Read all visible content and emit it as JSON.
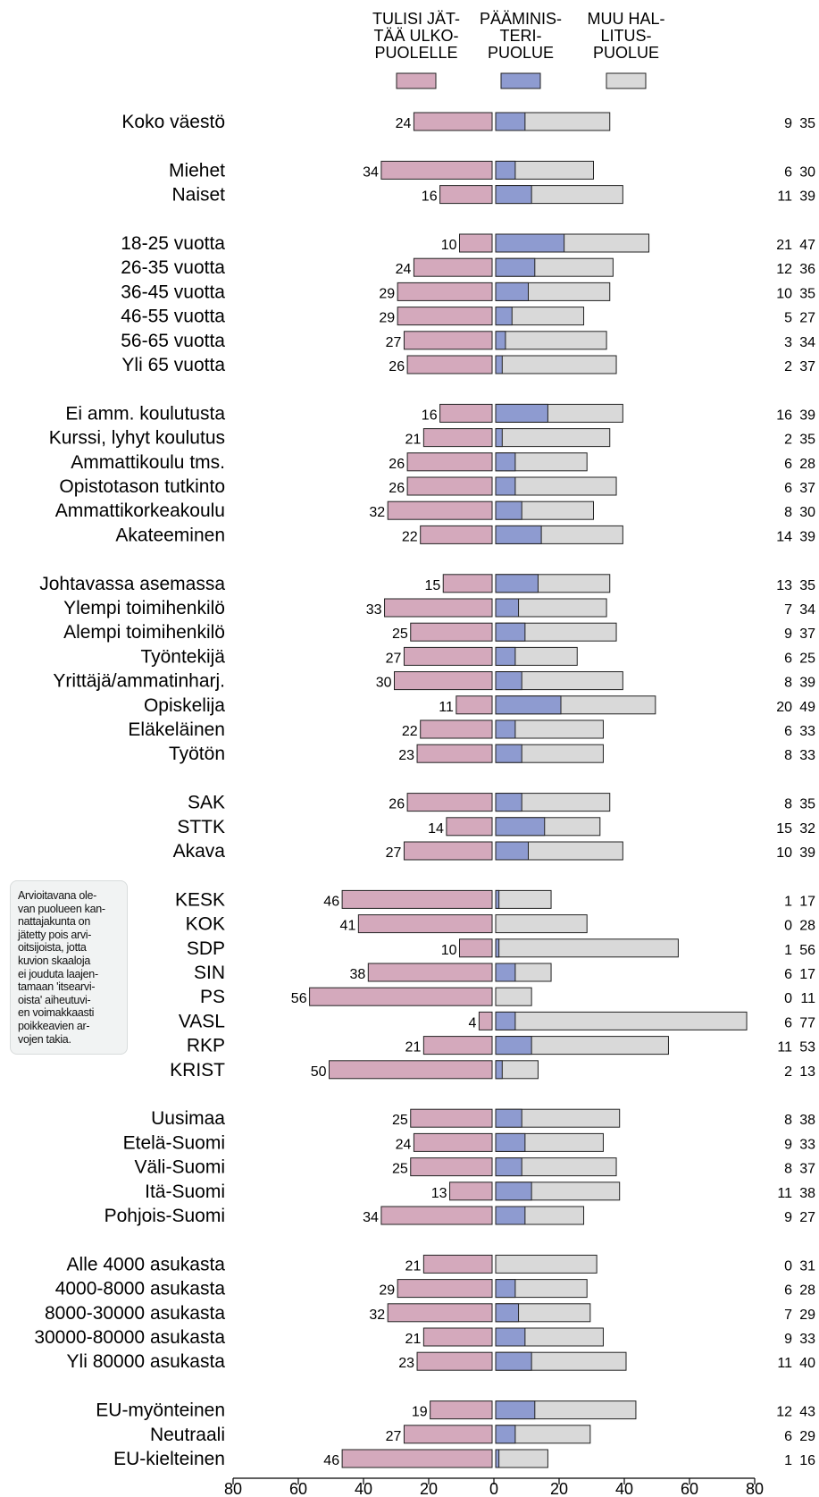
{
  "legend": [
    {
      "label": "TULISI JÄT-\nTÄÄ ULKO-\nPUOLELLE",
      "color": "#d4a9bc",
      "name": "legend-jattaa-ulkopuolelle"
    },
    {
      "label": "PÄÄMINIS-\nTERI-\nPUOLUE",
      "color": "#8e9bd0",
      "name": "legend-paaministeripuolue"
    },
    {
      "label": "MUU HAL-\nLITUS-\nPUOLUE",
      "color": "#d9d9d9",
      "name": "legend-muu-hallituspuolue"
    }
  ],
  "note": "Arvioitavana ole-\nvan puolueen kan-\nnattajakunta on\njätetty pois arvi-\noitsijoista, jotta\nkuvion skaaloja\nei jouduta laajen-\ntamaan 'itsearvi-\noista' aiheutuvi-\nen voimakkaasti\npoikkeavien ar-\nvojen takia.",
  "chart_data": {
    "type": "bar",
    "orientation": "horizontal-diverging",
    "xlim": [
      -80,
      80
    ],
    "xticks": [
      80,
      60,
      40,
      20,
      0,
      20,
      40,
      60,
      80
    ],
    "grid": false,
    "legend_position": "top",
    "groups": [
      [
        {
          "label": "Koko väestö",
          "left": 24,
          "pm": 9,
          "total": 35
        }
      ],
      [
        {
          "label": "Miehet",
          "left": 34,
          "pm": 6,
          "total": 30
        },
        {
          "label": "Naiset",
          "left": 16,
          "pm": 11,
          "total": 39
        }
      ],
      [
        {
          "label": "18-25 vuotta",
          "left": 10,
          "pm": 21,
          "total": 47
        },
        {
          "label": "26-35 vuotta",
          "left": 24,
          "pm": 12,
          "total": 36
        },
        {
          "label": "36-45 vuotta",
          "left": 29,
          "pm": 10,
          "total": 35
        },
        {
          "label": "46-55 vuotta",
          "left": 29,
          "pm": 5,
          "total": 27
        },
        {
          "label": "56-65 vuotta",
          "left": 27,
          "pm": 3,
          "total": 34
        },
        {
          "label": "Yli 65 vuotta",
          "left": 26,
          "pm": 2,
          "total": 37
        }
      ],
      [
        {
          "label": "Ei amm. koulutusta",
          "left": 16,
          "pm": 16,
          "total": 39
        },
        {
          "label": "Kurssi, lyhyt koulutus",
          "left": 21,
          "pm": 2,
          "total": 35
        },
        {
          "label": "Ammattikoulu tms.",
          "left": 26,
          "pm": 6,
          "total": 28
        },
        {
          "label": "Opistotason tutkinto",
          "left": 26,
          "pm": 6,
          "total": 37
        },
        {
          "label": "Ammattikorkeakoulu",
          "left": 32,
          "pm": 8,
          "total": 30
        },
        {
          "label": "Akateeminen",
          "left": 22,
          "pm": 14,
          "total": 39
        }
      ],
      [
        {
          "label": "Johtavassa asemassa",
          "left": 15,
          "pm": 13,
          "total": 35
        },
        {
          "label": "Ylempi toimihenkilö",
          "left": 33,
          "pm": 7,
          "total": 34
        },
        {
          "label": "Alempi toimihenkilö",
          "left": 25,
          "pm": 9,
          "total": 37
        },
        {
          "label": "Työntekijä",
          "left": 27,
          "pm": 6,
          "total": 25
        },
        {
          "label": "Yrittäjä/ammatinharj.",
          "left": 30,
          "pm": 8,
          "total": 39
        },
        {
          "label": "Opiskelija",
          "left": 11,
          "pm": 20,
          "total": 49
        },
        {
          "label": "Eläkeläinen",
          "left": 22,
          "pm": 6,
          "total": 33
        },
        {
          "label": "Työtön",
          "left": 23,
          "pm": 8,
          "total": 33
        }
      ],
      [
        {
          "label": "SAK",
          "left": 26,
          "pm": 8,
          "total": 35
        },
        {
          "label": "STTK",
          "left": 14,
          "pm": 15,
          "total": 32
        },
        {
          "label": "Akava",
          "left": 27,
          "pm": 10,
          "total": 39
        }
      ],
      [
        {
          "label": "KESK",
          "left": 46,
          "pm": 1,
          "total": 17
        },
        {
          "label": "KOK",
          "left": 41,
          "pm": 0,
          "total": 28
        },
        {
          "label": "SDP",
          "left": 10,
          "pm": 1,
          "total": 56
        },
        {
          "label": "SIN",
          "left": 38,
          "pm": 6,
          "total": 17
        },
        {
          "label": "PS",
          "left": 56,
          "pm": 0,
          "total": 11
        },
        {
          "label": "VASL",
          "left": 4,
          "pm": 6,
          "total": 77
        },
        {
          "label": "RKP",
          "left": 21,
          "pm": 11,
          "total": 53
        },
        {
          "label": "KRIST",
          "left": 50,
          "pm": 2,
          "total": 13
        }
      ],
      [
        {
          "label": "Uusimaa",
          "left": 25,
          "pm": 8,
          "total": 38
        },
        {
          "label": "Etelä-Suomi",
          "left": 24,
          "pm": 9,
          "total": 33
        },
        {
          "label": "Väli-Suomi",
          "left": 25,
          "pm": 8,
          "total": 37
        },
        {
          "label": "Itä-Suomi",
          "left": 13,
          "pm": 11,
          "total": 38
        },
        {
          "label": "Pohjois-Suomi",
          "left": 34,
          "pm": 9,
          "total": 27
        }
      ],
      [
        {
          "label": "Alle 4000 asukasta",
          "left": 21,
          "pm": 0,
          "total": 31
        },
        {
          "label": "4000-8000 asukasta",
          "left": 29,
          "pm": 6,
          "total": 28
        },
        {
          "label": "8000-30000 asukasta",
          "left": 32,
          "pm": 7,
          "total": 29
        },
        {
          "label": "30000-80000 asukasta",
          "left": 21,
          "pm": 9,
          "total": 33
        },
        {
          "label": "Yli 80000 asukasta",
          "left": 23,
          "pm": 11,
          "total": 40
        }
      ],
      [
        {
          "label": "EU-myönteinen",
          "left": 19,
          "pm": 12,
          "total": 43
        },
        {
          "label": "Neutraali",
          "left": 27,
          "pm": 6,
          "total": 29
        },
        {
          "label": "EU-kielteinen",
          "left": 46,
          "pm": 1,
          "total": 16
        }
      ]
    ]
  }
}
